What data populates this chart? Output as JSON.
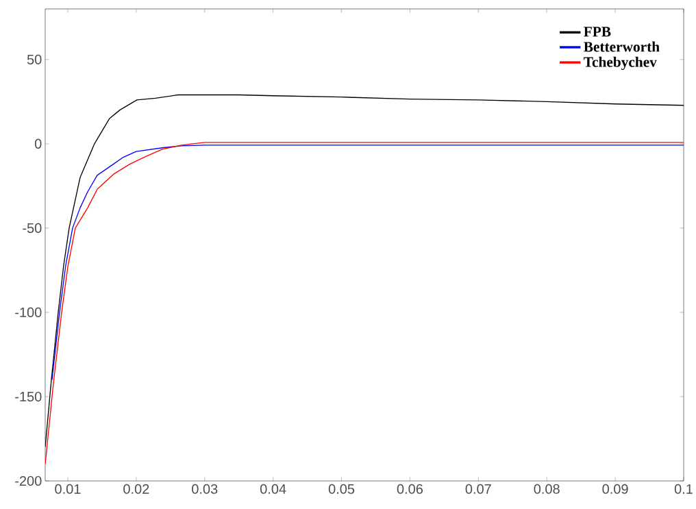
{
  "chart_data": {
    "type": "line",
    "xlim": [
      0.0067,
      0.1
    ],
    "ylim": [
      -200,
      80
    ],
    "xticks": [
      0.01,
      0.02,
      0.03,
      0.04,
      0.05,
      0.06,
      0.07,
      0.08,
      0.09,
      0.1
    ],
    "yticks": [
      -200,
      -150,
      -100,
      -50,
      0,
      50
    ],
    "legend": "top right",
    "grid": false,
    "line_style": "solid",
    "marker": "none",
    "series": [
      {
        "name": "FPB",
        "color": "#000000",
        "x": [
          0.0067,
          0.0076,
          0.0086,
          0.0094,
          0.0102,
          0.0118,
          0.0139,
          0.0161,
          0.0176,
          0.0201,
          0.0228,
          0.0261,
          0.03,
          0.035,
          0.04,
          0.05,
          0.06,
          0.07,
          0.08,
          0.09,
          0.1
        ],
        "values": [
          -180,
          -140,
          -100,
          -72,
          -50,
          -20,
          0,
          15,
          20,
          26,
          27,
          29,
          29,
          29,
          28.5,
          27.7,
          26.5,
          26,
          25,
          23.6,
          22.8
        ]
      },
      {
        "name": "Betterworth",
        "color": "#0000ff",
        "x": [
          0.0077,
          0.0088,
          0.0097,
          0.0107,
          0.0118,
          0.0129,
          0.0143,
          0.0167,
          0.0181,
          0.02,
          0.0238,
          0.0266,
          0.03,
          0.04,
          0.05,
          0.06,
          0.07,
          0.08,
          0.09,
          0.1
        ],
        "values": [
          -140,
          -100,
          -72,
          -50,
          -38,
          -28.5,
          -18.7,
          -12,
          -8,
          -4.6,
          -2.4,
          -1.2,
          -0.8,
          -0.8,
          -0.8,
          -0.8,
          -0.8,
          -0.8,
          -0.8,
          -0.8
        ]
      },
      {
        "name": "Tchebychev",
        "color": "#ff0000",
        "x": [
          0.0067,
          0.0079,
          0.0091,
          0.01,
          0.0111,
          0.012,
          0.0129,
          0.0143,
          0.0167,
          0.0191,
          0.0214,
          0.0238,
          0.0266,
          0.03,
          0.035,
          0.04,
          0.05,
          0.06,
          0.07,
          0.08,
          0.09,
          0.1
        ],
        "values": [
          -190,
          -142,
          -100,
          -73,
          -50,
          -44,
          -38,
          -27,
          -18,
          -12,
          -7.5,
          -3.3,
          -0.8,
          0.8,
          0.8,
          0.8,
          0.8,
          0.8,
          0.8,
          0.8,
          0.8,
          0.8
        ]
      }
    ]
  }
}
